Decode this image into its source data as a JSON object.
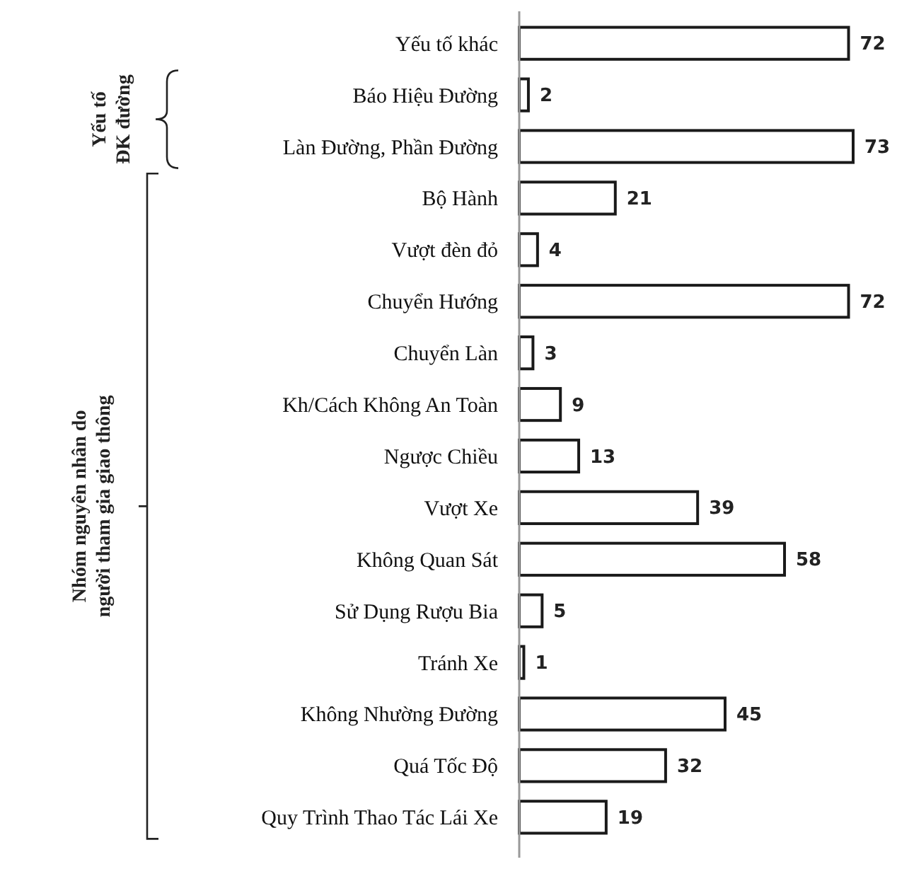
{
  "chart_data": {
    "type": "bar",
    "orientation": "horizontal",
    "data_labels": true,
    "categories": [
      "Yếu tố khác",
      "Báo Hiệu Đường",
      "Làn Đường, Phần Đường",
      "Bộ Hành",
      "Vượt đèn đỏ",
      "Chuyển Hướng",
      "Chuyển Làn",
      "Kh/Cách Không An Toàn",
      "Ngược Chiều",
      "Vượt Xe",
      "Không Quan Sát",
      "Sử Dụng Rượu Bia",
      "Tránh Xe",
      "Không Nhường Đường",
      "Quá Tốc Độ",
      "Quy Trình Thao Tác Lái Xe"
    ],
    "values": [
      72,
      2,
      73,
      21,
      4,
      72,
      3,
      9,
      13,
      39,
      58,
      5,
      1,
      45,
      32,
      19
    ],
    "color": "#ffffff",
    "annotations": [
      "Yếu tố\nĐK đường",
      "Nhóm nguyên nhân do\nngười tham gia giao thông"
    ]
  }
}
